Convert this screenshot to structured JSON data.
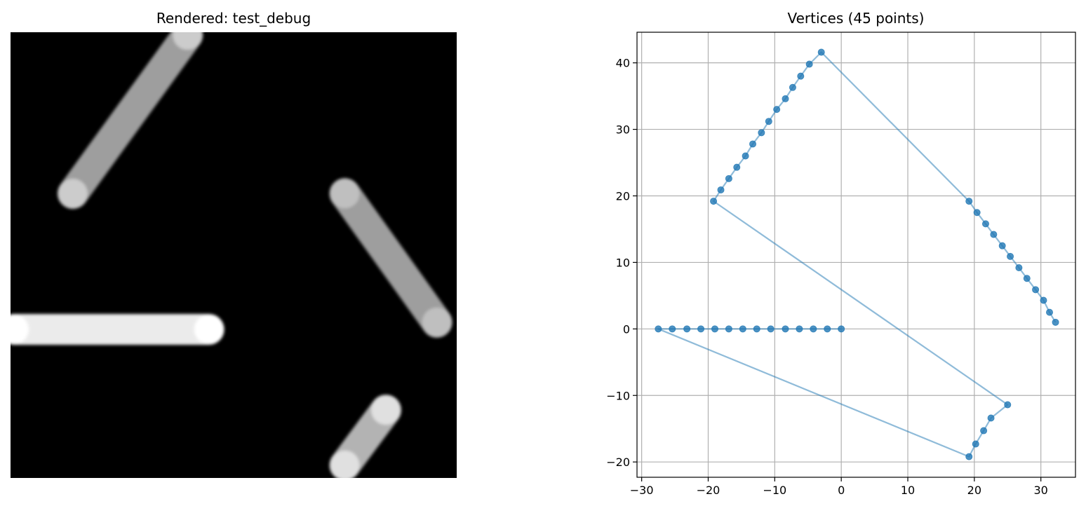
{
  "chart_data": [
    {
      "type": "image",
      "title": "Rendered: test_debug",
      "axes_visible": false,
      "colormap": "gray",
      "background": "#000000",
      "strokes": [
        {
          "shape": "horizontal bar",
          "from": [
            0.0,
            0.0
          ],
          "to": [
            -27.5,
            0.0
          ],
          "brightness": 0.92,
          "end_brightness": 1.0
        },
        {
          "shape": "diagonal bar",
          "from": [
            -19.2,
            19.2
          ],
          "to": [
            -3.0,
            41.6
          ],
          "brightness": 0.62,
          "end_brightness": 0.8
        },
        {
          "shape": "diagonal bar",
          "from": [
            19.2,
            19.2
          ],
          "to": [
            32.2,
            1.0
          ],
          "brightness": 0.62,
          "end_brightness": 0.75
        },
        {
          "shape": "diagonal bar",
          "from": [
            19.2,
            -19.2
          ],
          "to": [
            25.0,
            -11.4
          ],
          "brightness": 0.7,
          "end_brightness": 0.88
        }
      ]
    },
    {
      "type": "scatter",
      "title": "Vertices (45 points)",
      "xlabel": "",
      "ylabel": "",
      "xlim": [
        -30.7,
        35.2
      ],
      "ylim": [
        -22.3,
        44.6
      ],
      "xticks": [
        -30,
        -20,
        -10,
        0,
        10,
        20,
        30
      ],
      "yticks": [
        -20,
        -10,
        0,
        10,
        20,
        30,
        40
      ],
      "xtick_labels": [
        "−30",
        "−20",
        "−10",
        "0",
        "10",
        "20",
        "30"
      ],
      "ytick_labels": [
        "−20",
        "−10",
        "0",
        "10",
        "20",
        "30",
        "40"
      ],
      "grid": true,
      "line_color": "#1f77b4",
      "line_alpha": 0.5,
      "marker_color": "#1f77b4",
      "marker_alpha": 0.8,
      "points": [
        [
          0.0,
          0.0
        ],
        [
          -2.1,
          0.0
        ],
        [
          -4.2,
          0.0
        ],
        [
          -6.3,
          0.0
        ],
        [
          -8.4,
          0.0
        ],
        [
          -10.6,
          0.0
        ],
        [
          -12.7,
          0.0
        ],
        [
          -14.8,
          0.0
        ],
        [
          -16.9,
          0.0
        ],
        [
          -19.0,
          0.0
        ],
        [
          -21.1,
          0.0
        ],
        [
          -23.2,
          0.0
        ],
        [
          -25.4,
          0.0
        ],
        [
          -27.5,
          0.0
        ],
        [
          19.2,
          -19.2
        ],
        [
          20.2,
          -17.3
        ],
        [
          21.4,
          -15.3
        ],
        [
          22.5,
          -13.4
        ],
        [
          25.0,
          -11.4
        ],
        [
          -19.2,
          19.2
        ],
        [
          -18.1,
          20.9
        ],
        [
          -16.9,
          22.6
        ],
        [
          -15.7,
          24.3
        ],
        [
          -14.4,
          26.0
        ],
        [
          -13.3,
          27.8
        ],
        [
          -12.0,
          29.5
        ],
        [
          -10.9,
          31.2
        ],
        [
          -9.7,
          33.0
        ],
        [
          -8.4,
          34.6
        ],
        [
          -7.3,
          36.3
        ],
        [
          -6.1,
          38.0
        ],
        [
          -4.8,
          39.8
        ],
        [
          -3.0,
          41.6
        ],
        [
          19.2,
          19.2
        ],
        [
          20.4,
          17.5
        ],
        [
          21.7,
          15.8
        ],
        [
          22.9,
          14.2
        ],
        [
          24.2,
          12.5
        ],
        [
          25.4,
          10.9
        ],
        [
          26.7,
          9.2
        ],
        [
          27.9,
          7.6
        ],
        [
          29.2,
          5.9
        ],
        [
          30.4,
          4.3
        ],
        [
          31.3,
          2.5
        ],
        [
          32.2,
          1.0
        ]
      ]
    }
  ]
}
